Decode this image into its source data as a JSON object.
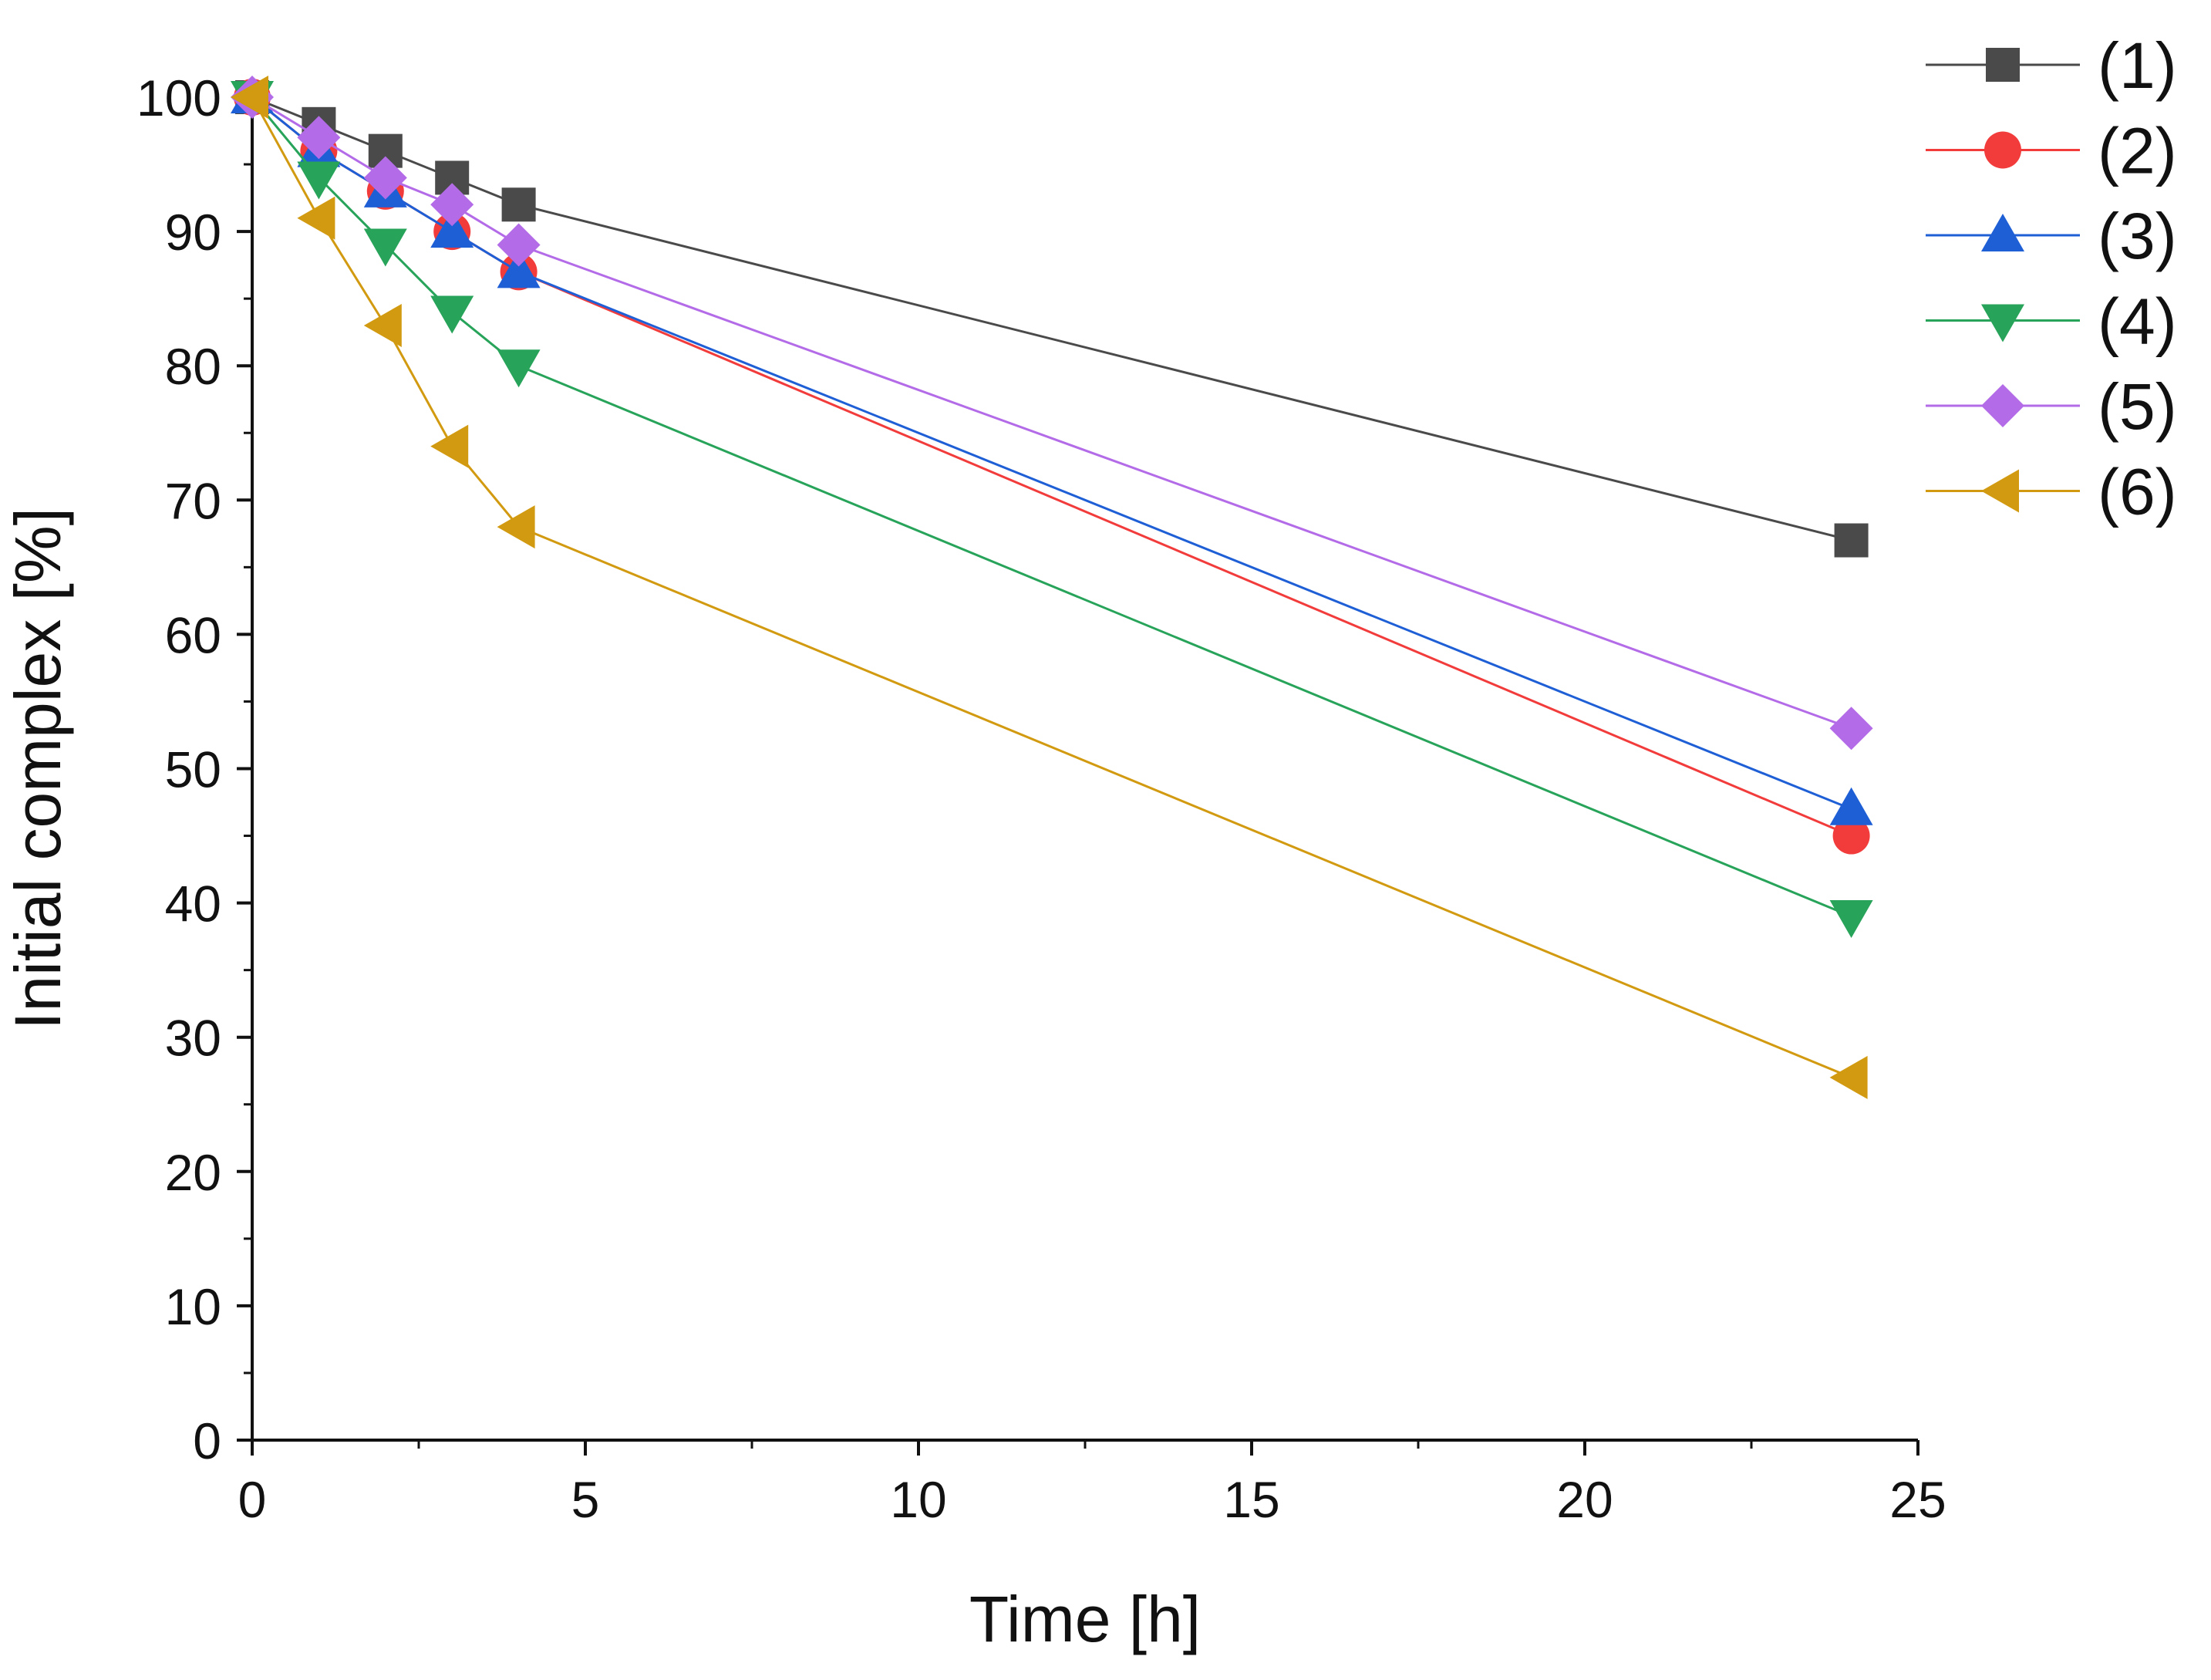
{
  "chart_data": {
    "type": "line",
    "title": "",
    "xlabel": "Time [h]",
    "ylabel": "Initial complex [%]",
    "xlim": [
      0,
      25
    ],
    "ylim": [
      0,
      100
    ],
    "xticks": [
      0,
      5,
      10,
      15,
      20,
      25
    ],
    "xtick_labels": [
      "0",
      "5",
      "10",
      "15",
      "20",
      "25"
    ],
    "yticks": [
      0,
      10,
      20,
      30,
      40,
      50,
      60,
      70,
      80,
      90,
      100
    ],
    "ytick_labels": [
      "0",
      "10",
      "20",
      "30",
      "40",
      "50",
      "60",
      "70",
      "80",
      "90",
      "100"
    ],
    "grid": false,
    "legend_position": "top-right, outside plot",
    "x": [
      0,
      1,
      2,
      3,
      4,
      24
    ],
    "series": [
      {
        "name": "(1)",
        "marker": "square",
        "color": "#4a4a4a",
        "values": [
          100,
          98,
          96,
          94,
          92,
          67
        ]
      },
      {
        "name": "(2)",
        "marker": "circle",
        "color": "#f23c3c",
        "values": [
          100,
          96,
          93,
          90,
          87,
          45
        ]
      },
      {
        "name": "(3)",
        "marker": "triangle-up",
        "color": "#1f5fd6",
        "values": [
          100,
          96,
          93,
          90,
          87,
          47
        ]
      },
      {
        "name": "(4)",
        "marker": "triangle-down",
        "color": "#27a35a",
        "values": [
          100,
          94,
          89,
          84,
          80,
          39
        ]
      },
      {
        "name": "(5)",
        "marker": "diamond",
        "color": "#b36be8",
        "values": [
          100,
          97,
          94,
          92,
          89,
          53
        ]
      },
      {
        "name": "(6)",
        "marker": "triangle-left",
        "color": "#d29a10",
        "values": [
          100,
          91,
          83,
          74,
          68,
          27
        ]
      }
    ]
  }
}
